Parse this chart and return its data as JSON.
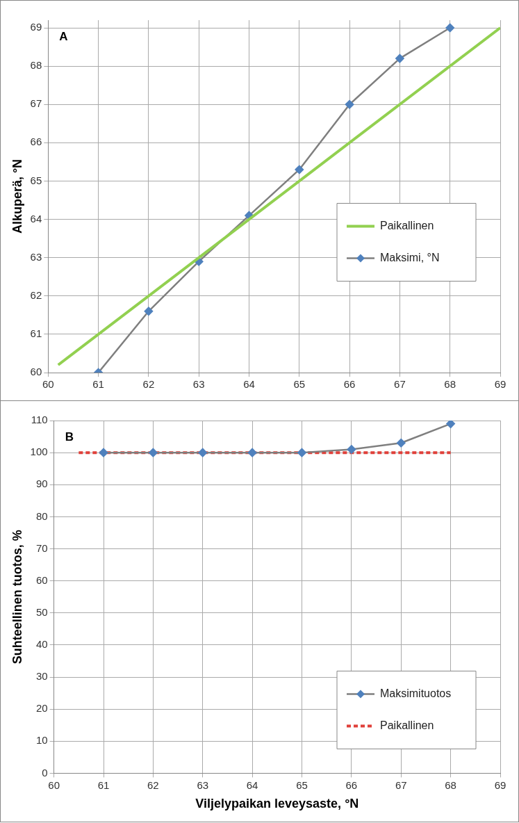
{
  "chart_data": [
    {
      "type": "line",
      "ylabel": "Alkuperä, °N",
      "annotations": [
        "A"
      ],
      "xlim": [
        60,
        69
      ],
      "xticks": [
        60,
        61,
        62,
        63,
        64,
        65,
        66,
        67,
        68,
        69
      ],
      "ylim": [
        60,
        69.2
      ],
      "yticks": [
        60,
        61,
        62,
        63,
        64,
        65,
        66,
        67,
        68,
        69
      ],
      "grid": true,
      "legend": "right",
      "series": [
        {
          "name": "Paikallinen",
          "color": "#92d050",
          "x": [
            60.2,
            69
          ],
          "values": [
            60.2,
            69
          ],
          "marker": "none",
          "line_style": "solid"
        },
        {
          "name": "Maksimi, °N",
          "color": "#7f7f7f",
          "x": [
            61,
            62,
            63,
            64,
            65,
            66,
            67,
            68
          ],
          "values": [
            60,
            61.6,
            62.9,
            64.1,
            65.3,
            67,
            68.2,
            69
          ],
          "marker": "diamond",
          "line_style": "solid"
        }
      ]
    },
    {
      "type": "line",
      "ylabel": "Suhteellinen tuotos, %",
      "xlabel": "Viljelypaikan leveysaste, °N",
      "annotations": [
        "B"
      ],
      "xlim": [
        60,
        69
      ],
      "xticks": [
        60,
        61,
        62,
        63,
        64,
        65,
        66,
        67,
        68,
        69
      ],
      "ylim": [
        0,
        110
      ],
      "yticks": [
        0,
        10,
        20,
        30,
        40,
        50,
        60,
        70,
        80,
        90,
        100,
        110
      ],
      "grid": true,
      "legend": "bottom right",
      "series": [
        {
          "name": "Maksimituotos",
          "color": "#7f7f7f",
          "x": [
            61,
            62,
            63,
            64,
            65,
            66,
            67,
            68
          ],
          "values": [
            100,
            100,
            100,
            100,
            100,
            101,
            103,
            109
          ],
          "marker": "diamond",
          "line_style": "solid"
        },
        {
          "name": "Paikallinen",
          "color": "#e0403a",
          "x": [
            60.5,
            68
          ],
          "values": [
            100,
            100
          ],
          "marker": "none",
          "line_style": "dashed"
        }
      ]
    }
  ]
}
